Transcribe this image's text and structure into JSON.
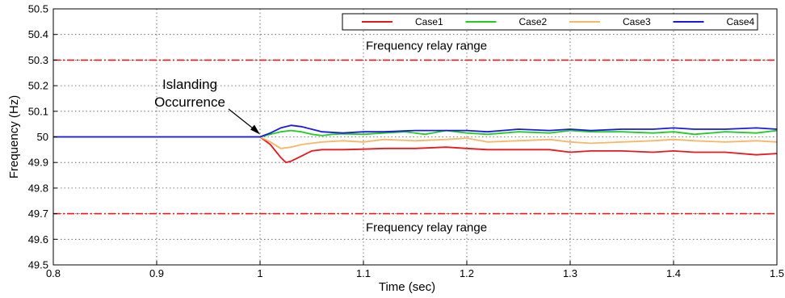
{
  "chart_data": {
    "type": "line",
    "xlabel": "Time (sec)",
    "ylabel": "Frequency (Hz)",
    "xlim": [
      0.8,
      1.5
    ],
    "ylim": [
      49.5,
      50.5
    ],
    "xticks": [
      "0.8",
      "0.9",
      "1",
      "1.1",
      "1.2",
      "1.3",
      "1.4",
      "1.5"
    ],
    "yticks": [
      "49.5",
      "49.6",
      "49.7",
      "49.8",
      "49.9",
      "50",
      "50.1",
      "50.2",
      "50.3",
      "50.4",
      "50.5"
    ],
    "grid": true,
    "legend_position": "top-right",
    "relay_limits": [
      50.3,
      49.7
    ],
    "annotations": {
      "relay_upper": "Frequency relay range",
      "relay_lower": "Frequency relay range",
      "islanding_line1": "Islanding",
      "islanding_line2": "Occurrence"
    },
    "series": [
      {
        "name": "Case1",
        "color": "#e8191e",
        "x": [
          0.8,
          1.0,
          1.01,
          1.02,
          1.025,
          1.03,
          1.04,
          1.05,
          1.06,
          1.08,
          1.1,
          1.12,
          1.15,
          1.18,
          1.2,
          1.22,
          1.25,
          1.28,
          1.3,
          1.32,
          1.35,
          1.38,
          1.4,
          1.42,
          1.45,
          1.48,
          1.5
        ],
        "y": [
          50.0,
          50.0,
          49.97,
          49.92,
          49.9,
          49.905,
          49.925,
          49.945,
          49.95,
          49.95,
          49.952,
          49.955,
          49.955,
          49.96,
          49.955,
          49.95,
          49.95,
          49.95,
          49.94,
          49.945,
          49.945,
          49.94,
          49.945,
          49.94,
          49.94,
          49.93,
          49.935
        ]
      },
      {
        "name": "Case2",
        "color": "#22cc22",
        "x": [
          0.8,
          1.0,
          1.01,
          1.02,
          1.03,
          1.04,
          1.05,
          1.06,
          1.07,
          1.08,
          1.1,
          1.12,
          1.14,
          1.16,
          1.18,
          1.2,
          1.22,
          1.25,
          1.28,
          1.3,
          1.32,
          1.35,
          1.38,
          1.4,
          1.42,
          1.45,
          1.48,
          1.5
        ],
        "y": [
          50.0,
          50.0,
          50.01,
          50.02,
          50.025,
          50.02,
          50.01,
          50.005,
          50.01,
          50.012,
          50.01,
          50.015,
          50.02,
          50.01,
          50.025,
          50.015,
          50.01,
          50.02,
          50.015,
          50.025,
          50.02,
          50.02,
          50.015,
          50.02,
          50.01,
          50.02,
          50.015,
          50.025
        ]
      },
      {
        "name": "Case3",
        "color": "#f5b86a",
        "x": [
          0.8,
          1.0,
          1.01,
          1.02,
          1.03,
          1.04,
          1.05,
          1.06,
          1.08,
          1.1,
          1.12,
          1.15,
          1.18,
          1.2,
          1.22,
          1.25,
          1.28,
          1.3,
          1.32,
          1.35,
          1.38,
          1.4,
          1.42,
          1.45,
          1.48,
          1.5
        ],
        "y": [
          50.0,
          50.0,
          49.98,
          49.955,
          49.96,
          49.97,
          49.975,
          49.98,
          49.985,
          49.98,
          49.99,
          49.985,
          49.99,
          49.995,
          49.98,
          49.985,
          49.99,
          49.98,
          49.975,
          49.98,
          49.985,
          49.99,
          49.985,
          49.98,
          49.985,
          49.98
        ]
      },
      {
        "name": "Case4",
        "color": "#1a1adf",
        "x": [
          0.8,
          1.0,
          1.01,
          1.02,
          1.03,
          1.04,
          1.05,
          1.06,
          1.08,
          1.1,
          1.12,
          1.15,
          1.18,
          1.2,
          1.22,
          1.25,
          1.28,
          1.3,
          1.32,
          1.35,
          1.38,
          1.4,
          1.42,
          1.45,
          1.48,
          1.5
        ],
        "y": [
          50.0,
          50.0,
          50.015,
          50.035,
          50.045,
          50.04,
          50.03,
          50.02,
          50.015,
          50.02,
          50.02,
          50.025,
          50.025,
          50.025,
          50.02,
          50.03,
          50.025,
          50.03,
          50.025,
          50.03,
          50.03,
          50.035,
          50.03,
          50.03,
          50.035,
          50.03
        ]
      }
    ]
  }
}
